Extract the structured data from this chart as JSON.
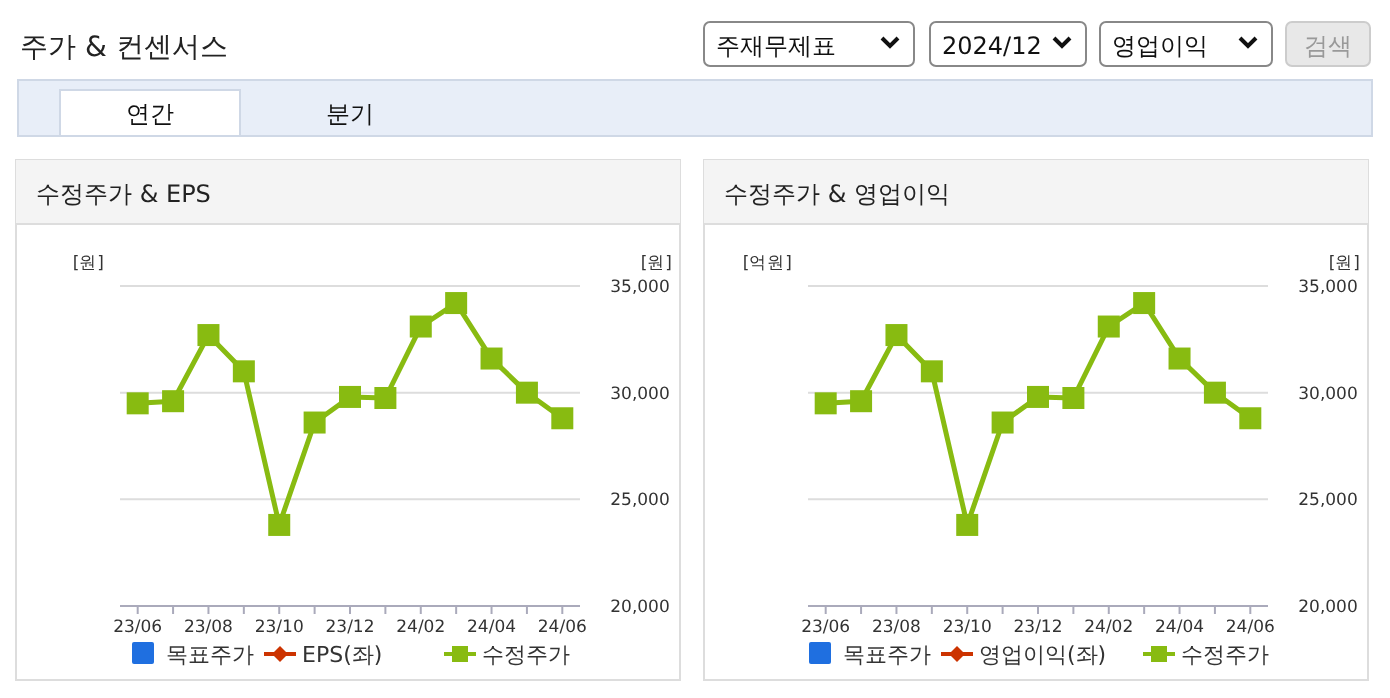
{
  "chart_data": [
    {
      "type": "other",
      "title": "주가 & 컨센서스",
      "annotations": [
        "주재무제표",
        "2024/12",
        "영업이익",
        "검색",
        "연간",
        "분기"
      ]
    },
    {
      "type": "line",
      "title": "수정주가 & EPS",
      "ylabel": "[원]",
      "y2label": "[원]",
      "categories": [
        "23/06",
        null,
        "23/08",
        null,
        "23/10",
        null,
        "23/12",
        null,
        "24/02",
        null,
        "24/04",
        null,
        "24/06"
      ],
      "y2lim": [
        20000,
        35000
      ],
      "y2ticks": [
        {
          "value": 20000,
          "label": "20,000"
        },
        {
          "value": 25000,
          "label": "25,000"
        },
        {
          "value": 30000,
          "label": "30,000"
        },
        {
          "value": 35000,
          "label": "35,000"
        }
      ],
      "grid": "y",
      "legend": "bottom",
      "series": [
        {
          "name": "목표주가",
          "type": "bar",
          "color": "#1f6fe0",
          "axis": "y2",
          "values": [
            null,
            null,
            null,
            null,
            null,
            null,
            null,
            null,
            null,
            null,
            null,
            null,
            null
          ]
        },
        {
          "name": "EPS(좌)",
          "type": "line",
          "color": "#cc3300",
          "marker": "diamond",
          "axis": "y",
          "values": [
            null,
            null,
            null,
            null,
            null,
            null,
            null,
            null,
            null,
            null,
            null,
            null,
            null
          ]
        },
        {
          "name": "수정주가",
          "type": "line",
          "color": "#88bb11",
          "marker": "square",
          "axis": "y2",
          "values": [
            29500,
            29600,
            32700,
            31000,
            23800,
            28600,
            29800,
            29750,
            33100,
            34200,
            31600,
            30000,
            28800
          ]
        }
      ]
    },
    {
      "type": "line",
      "title": "수정주가 & 영업이익",
      "ylabel": "[억원]",
      "y2label": "[원]",
      "categories": [
        "23/06",
        null,
        "23/08",
        null,
        "23/10",
        null,
        "23/12",
        null,
        "24/02",
        null,
        "24/04",
        null,
        "24/06"
      ],
      "y2lim": [
        20000,
        35000
      ],
      "y2ticks": [
        {
          "value": 20000,
          "label": "20,000"
        },
        {
          "value": 25000,
          "label": "25,000"
        },
        {
          "value": 30000,
          "label": "30,000"
        },
        {
          "value": 35000,
          "label": "35,000"
        }
      ],
      "grid": "y",
      "legend": "bottom",
      "series": [
        {
          "name": "목표주가",
          "type": "bar",
          "color": "#1f6fe0",
          "axis": "y2",
          "values": [
            null,
            null,
            null,
            null,
            null,
            null,
            null,
            null,
            null,
            null,
            null,
            null,
            null
          ]
        },
        {
          "name": "영업이익(좌)",
          "type": "line",
          "color": "#cc3300",
          "marker": "diamond",
          "axis": "y",
          "values": [
            null,
            null,
            null,
            null,
            null,
            null,
            null,
            null,
            null,
            null,
            null,
            null,
            null
          ]
        },
        {
          "name": "수정주가",
          "type": "line",
          "color": "#88bb11",
          "marker": "square",
          "axis": "y2",
          "values": [
            29500,
            29600,
            32700,
            31000,
            23800,
            28600,
            29800,
            29750,
            33100,
            34200,
            31600,
            30000,
            28800
          ]
        }
      ]
    }
  ]
}
